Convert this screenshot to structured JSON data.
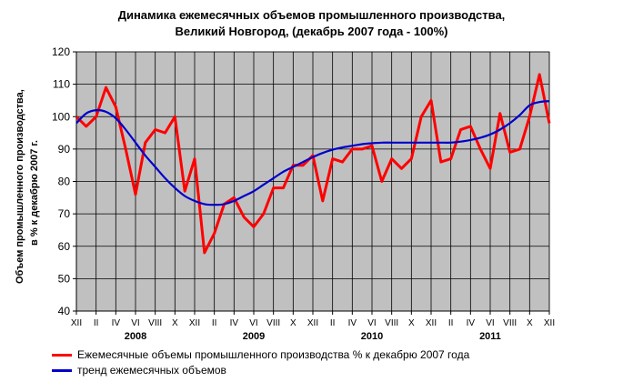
{
  "chart_data": {
    "type": "line",
    "title_line1": "Динамика ежемесячных объемов промышленного производства,",
    "title_line2": "Великий Новгород,  (декабрь 2007 года - 100%)",
    "ylabel_line1": "Объем промышленного производства,",
    "ylabel_line2": "в % к декабрю 2007 г.",
    "ylim": [
      40,
      120
    ],
    "yticks": [
      40,
      50,
      60,
      70,
      80,
      90,
      100,
      110,
      120
    ],
    "grid": true,
    "plot_background": "#c0c0c0",
    "xtick_labels": [
      "XII",
      "II",
      "IV",
      "VI",
      "VIII",
      "X",
      "XII",
      "II",
      "IV",
      "VI",
      "VIII",
      "X",
      "XII",
      "II",
      "IV",
      "VI",
      "VIII",
      "X",
      "XII",
      "II",
      "IV",
      "VI",
      "VIII",
      "X",
      "XII"
    ],
    "year_labels": [
      {
        "label": "2008",
        "month_index": 6
      },
      {
        "label": "2009",
        "month_index": 18
      },
      {
        "label": "2010",
        "month_index": 30
      },
      {
        "label": "2011",
        "month_index": 42
      }
    ],
    "legend_position": "bottom",
    "series": [
      {
        "name": "Ежемесячные объемы промышленного производства % к декабрю 2007 года",
        "color": "#ff0000",
        "values": [
          100,
          97,
          100,
          109,
          103,
          90,
          76,
          92,
          96,
          95,
          100,
          77,
          87,
          58,
          64,
          73,
          75,
          69,
          66,
          70,
          78,
          78,
          85,
          85,
          88,
          74,
          87,
          86,
          90,
          90,
          91,
          80,
          87,
          84,
          87,
          100,
          105,
          86,
          87,
          96,
          97,
          90,
          84,
          101,
          89,
          90,
          100,
          113,
          98
        ]
      },
      {
        "name": "тренд ежемесячных объемов",
        "color": "#0000cc",
        "values": [
          98,
          101,
          102,
          101.5,
          99.5,
          96,
          92,
          88,
          84.5,
          81,
          78,
          75.5,
          74,
          73,
          72.8,
          73,
          74,
          75.5,
          77,
          79,
          81,
          83,
          84.5,
          86,
          87.5,
          88.8,
          89.8,
          90.5,
          91,
          91.5,
          91.8,
          92,
          92,
          92,
          92,
          92,
          92,
          92,
          92,
          92.3,
          92.8,
          93.5,
          94.5,
          96,
          98,
          100.5,
          103.5,
          104.5,
          104.8
        ]
      }
    ]
  }
}
